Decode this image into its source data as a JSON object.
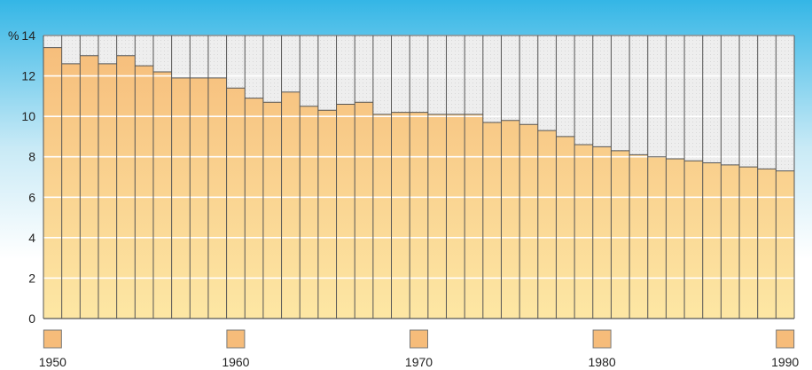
{
  "chart_data": {
    "type": "bar",
    "title": "",
    "xlabel": "",
    "ylabel": "%",
    "ylim": [
      0,
      14
    ],
    "yticks": [
      0,
      2,
      4,
      6,
      8,
      10,
      12,
      14
    ],
    "x_tick_labels": [
      "1950",
      "1960",
      "1970",
      "1980",
      "1990"
    ],
    "categories": [
      "1950",
      "1951",
      "1952",
      "1953",
      "1954",
      "1955",
      "1956",
      "1957",
      "1958",
      "1959",
      "1960",
      "1961",
      "1962",
      "1963",
      "1964",
      "1965",
      "1966",
      "1967",
      "1968",
      "1969",
      "1970",
      "1971",
      "1972",
      "1973",
      "1974",
      "1975",
      "1976",
      "1977",
      "1978",
      "1979",
      "1980",
      "1981",
      "1982",
      "1983",
      "1984",
      "1985",
      "1986",
      "1987",
      "1988",
      "1989",
      "1990"
    ],
    "values": [
      13.4,
      12.6,
      13.0,
      12.6,
      13.0,
      12.5,
      12.2,
      11.9,
      11.9,
      11.9,
      11.4,
      10.9,
      10.7,
      11.2,
      10.5,
      10.3,
      10.6,
      10.7,
      10.1,
      10.2,
      10.2,
      10.1,
      10.1,
      10.1,
      9.7,
      9.8,
      9.6,
      9.3,
      9.0,
      8.6,
      8.5,
      8.3,
      8.1,
      8.0,
      7.9,
      7.8,
      7.7,
      7.6,
      7.5,
      7.4,
      7.3
    ],
    "grid": true,
    "colors": {
      "background_top": "#34b6e6",
      "background_bottom": "#ffffff",
      "bar_fill_top": "#f6bc7a",
      "bar_fill_bottom": "#fde7a4",
      "remainder_fill": "#eeeeee",
      "bar_outline": "#555555",
      "gridline": "#ffffff",
      "year_marker": "#f6bc7a"
    }
  }
}
